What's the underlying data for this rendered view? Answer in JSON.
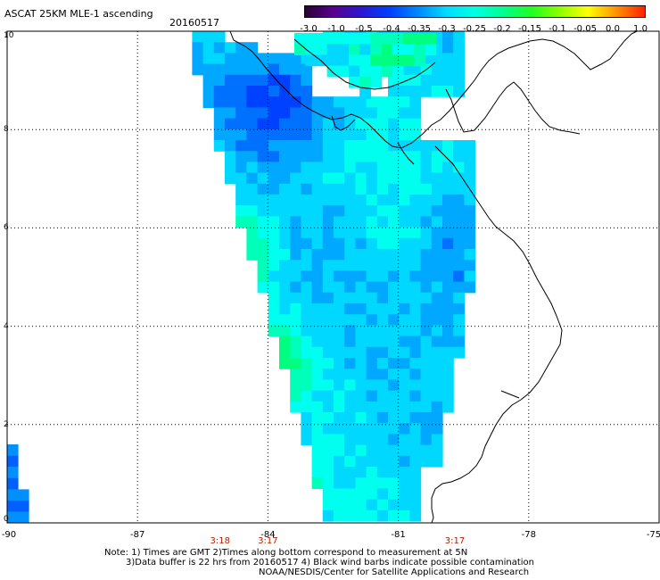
{
  "header": {
    "title": "ASCAT 25KM MLE-1 ascending",
    "date": "20160517"
  },
  "colorbar": {
    "tick_labels": [
      "-3.0",
      "-1.0",
      "-0.5",
      "-0.4",
      "-0.35",
      "-0.3",
      "-0.25",
      "-0.2",
      "-0.15",
      "-0.1",
      "-0.05",
      "0.0",
      "1.0"
    ],
    "colors": [
      "#2a0033",
      "#5a0090",
      "#2a18d0",
      "#0040ff",
      "#0088ff",
      "#00ddff",
      "#00ffe0",
      "#00ff90",
      "#20ff20",
      "#90ff00",
      "#ffff00",
      "#ff9000",
      "#ff2000"
    ]
  },
  "map": {
    "lon_labels": [
      "-90",
      "-87",
      "-84",
      "-81",
      "-78",
      "-75"
    ],
    "lat_labels": [
      "10",
      "8",
      "6",
      "4",
      "2",
      "0"
    ],
    "time_labels": [
      {
        "text": "3:18",
        "lon": -85.1
      },
      {
        "text": "3:17",
        "lon": -84.0
      },
      {
        "text": "3:17",
        "lon": -79.7
      }
    ],
    "grid": true,
    "coastline_color": "#000000"
  },
  "notes": {
    "line1": "Note: 1) Times are GMT 2)Times along bottom correspond to measurement at 5N",
    "line2": "3)Data buffer is 22 hrs from 20160517 4) Black wind barbs indicate possible contamination",
    "line3": "NOAA/NESDIS/Center for Satellite Applications and Research"
  }
}
